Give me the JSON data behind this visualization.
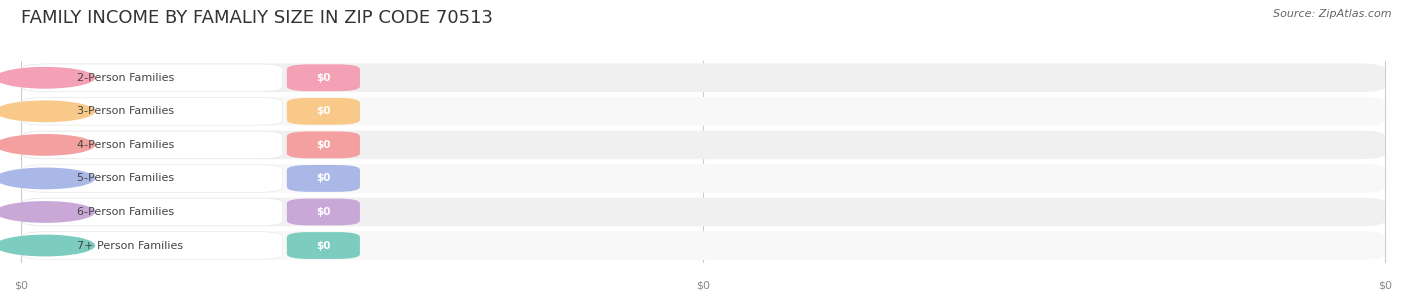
{
  "title": "FAMILY INCOME BY FAMALIY SIZE IN ZIP CODE 70513",
  "source": "Source: ZipAtlas.com",
  "categories": [
    "2-Person Families",
    "3-Person Families",
    "4-Person Families",
    "5-Person Families",
    "6-Person Families",
    "7+ Person Families"
  ],
  "values": [
    0,
    0,
    0,
    0,
    0,
    0
  ],
  "bar_colors": [
    "#f4a0b5",
    "#f9c98a",
    "#f4a0a0",
    "#aab8e8",
    "#c9a8d8",
    "#7dccc0"
  ],
  "bg_color": "#ffffff",
  "row_bg_even": "#f0f0f0",
  "row_bg_odd": "#f8f8f8",
  "title_fontsize": 13,
  "source_fontsize": 8,
  "label_fontsize": 8,
  "value_fontsize": 7.5,
  "tick_fontsize": 8,
  "tick_color": "#888888"
}
